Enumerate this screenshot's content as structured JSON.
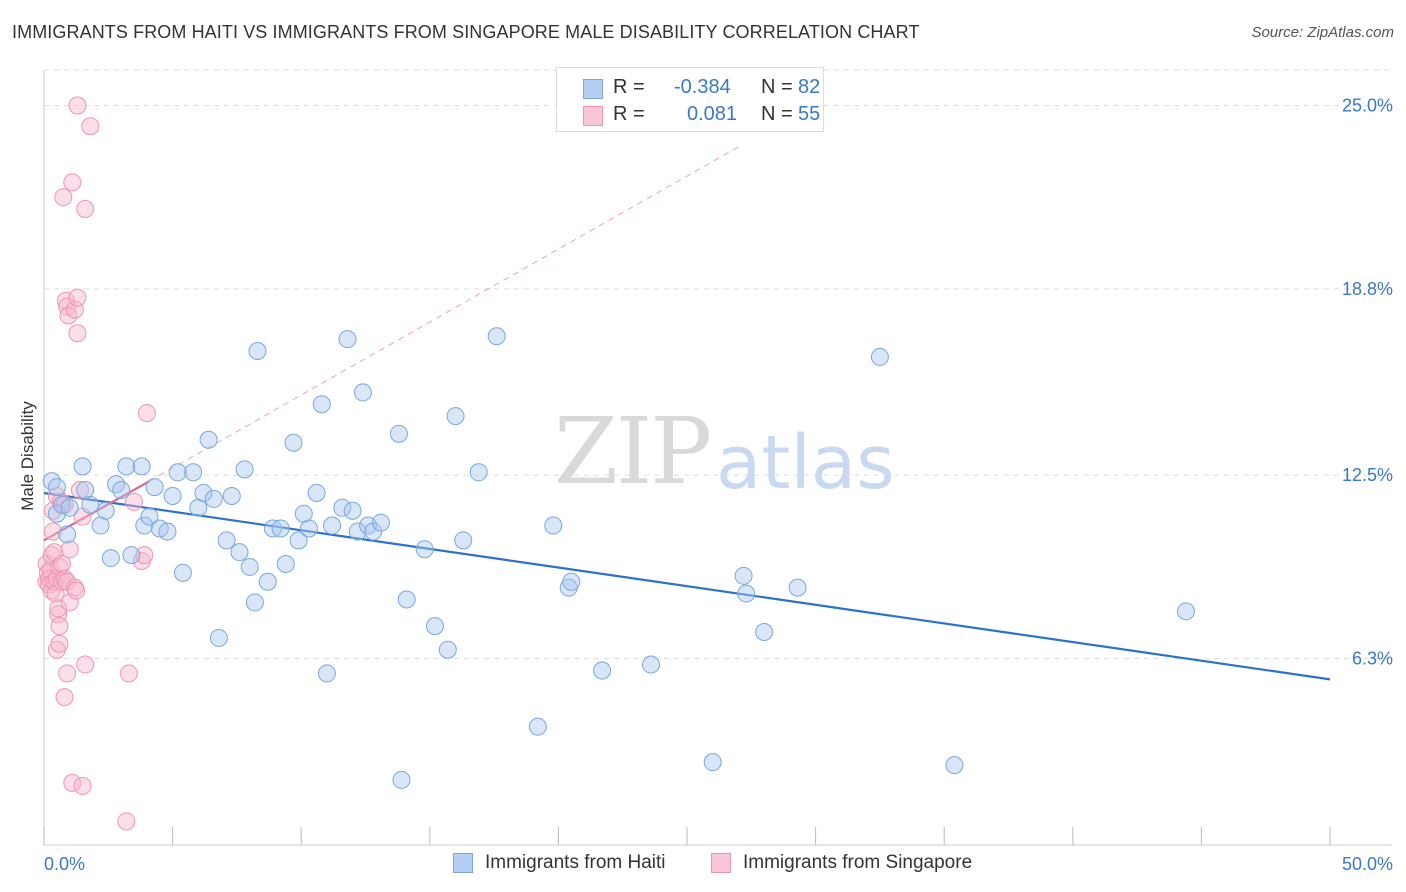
{
  "header": {
    "title": "IMMIGRANTS FROM HAITI VS IMMIGRANTS FROM SINGAPORE MALE DISABILITY CORRELATION CHART",
    "source": "Source: ZipAtlas.com"
  },
  "watermark": {
    "zip": "ZIP",
    "atlas": "atlas"
  },
  "legend": {
    "haiti": {
      "r_label": "R =",
      "r_value": "-0.384",
      "n_label": "N =",
      "n_value": "82"
    },
    "singapore": {
      "r_label": "R =",
      "r_value": "0.081",
      "n_label": "N =",
      "n_value": "55"
    }
  },
  "colors": {
    "haiti_fill": "#a9c8ef",
    "haiti_stroke": "#7aa7de",
    "haiti_line": "#2b72cc",
    "singapore_fill": "#f6b9cc",
    "singapore_stroke": "#ee95b2",
    "singapore_line": "#e0668f",
    "grid": "#dddddd",
    "tick_label": "#3a78c9"
  },
  "chart_data": {
    "type": "scatter",
    "title": "IMMIGRANTS FROM HAITI VS IMMIGRANTS FROM SINGAPORE MALE DISABILITY CORRELATION CHART",
    "xlabel": "",
    "ylabel": "Male Disability",
    "xlim": [
      0,
      50
    ],
    "ylim": [
      0,
      26.2
    ],
    "x_tick_labels": [
      "0.0%",
      "50.0%"
    ],
    "y_ticks": [
      6.3,
      12.5,
      18.8,
      25.0
    ],
    "y_tick_labels": [
      "6.3%",
      "12.5%",
      "18.8%",
      "25.0%"
    ],
    "grid": true,
    "series": [
      {
        "name": "Immigrants from Haiti",
        "r": -0.384,
        "n": 82,
        "trend": {
          "x": [
            0,
            50
          ],
          "y": [
            11.9,
            5.6
          ]
        },
        "points": [
          [
            0.3,
            12.3
          ],
          [
            0.5,
            11.2
          ],
          [
            0.5,
            12.1
          ],
          [
            0.7,
            11.5
          ],
          [
            0.9,
            10.5
          ],
          [
            1.0,
            11.4
          ],
          [
            1.5,
            12.8
          ],
          [
            1.6,
            12.0
          ],
          [
            1.8,
            11.5
          ],
          [
            2.2,
            10.8
          ],
          [
            2.4,
            11.3
          ],
          [
            2.6,
            9.7
          ],
          [
            2.8,
            12.2
          ],
          [
            3.0,
            12.0
          ],
          [
            3.2,
            12.8
          ],
          [
            3.4,
            9.8
          ],
          [
            3.8,
            12.8
          ],
          [
            3.9,
            10.8
          ],
          [
            4.1,
            11.1
          ],
          [
            4.3,
            12.1
          ],
          [
            4.5,
            10.7
          ],
          [
            4.8,
            10.6
          ],
          [
            5.0,
            11.8
          ],
          [
            5.4,
            9.2
          ],
          [
            5.2,
            12.6
          ],
          [
            5.8,
            12.6
          ],
          [
            6.0,
            11.4
          ],
          [
            6.2,
            11.9
          ],
          [
            6.4,
            13.7
          ],
          [
            6.6,
            11.7
          ],
          [
            6.8,
            7.0
          ],
          [
            7.1,
            10.3
          ],
          [
            7.3,
            11.8
          ],
          [
            7.6,
            9.9
          ],
          [
            7.8,
            12.7
          ],
          [
            8.0,
            9.4
          ],
          [
            8.2,
            8.2
          ],
          [
            8.3,
            16.7
          ],
          [
            8.7,
            8.9
          ],
          [
            8.9,
            10.7
          ],
          [
            9.2,
            10.7
          ],
          [
            9.4,
            9.5
          ],
          [
            9.7,
            13.6
          ],
          [
            9.9,
            10.3
          ],
          [
            10.1,
            11.2
          ],
          [
            10.3,
            10.7
          ],
          [
            10.6,
            11.9
          ],
          [
            10.8,
            14.9
          ],
          [
            11.0,
            5.8
          ],
          [
            11.2,
            10.8
          ],
          [
            11.6,
            11.4
          ],
          [
            11.8,
            17.1
          ],
          [
            12.0,
            11.3
          ],
          [
            12.2,
            10.6
          ],
          [
            12.4,
            15.3
          ],
          [
            12.6,
            10.8
          ],
          [
            12.8,
            10.6
          ],
          [
            13.1,
            10.9
          ],
          [
            13.8,
            13.9
          ],
          [
            13.9,
            2.2
          ],
          [
            14.1,
            8.3
          ],
          [
            14.8,
            10.0
          ],
          [
            15.2,
            7.4
          ],
          [
            15.7,
            6.6
          ],
          [
            16.0,
            14.5
          ],
          [
            16.3,
            10.3
          ],
          [
            16.9,
            12.6
          ],
          [
            17.6,
            17.2
          ],
          [
            19.2,
            4.0
          ],
          [
            19.8,
            10.8
          ],
          [
            20.4,
            8.7
          ],
          [
            20.5,
            8.9
          ],
          [
            21.7,
            5.9
          ],
          [
            23.6,
            6.1
          ],
          [
            26.0,
            2.8
          ],
          [
            27.2,
            9.1
          ],
          [
            27.3,
            8.5
          ],
          [
            28.0,
            7.2
          ],
          [
            29.3,
            8.7
          ],
          [
            32.5,
            16.5
          ],
          [
            35.4,
            2.7
          ],
          [
            44.4,
            7.9
          ]
        ]
      },
      {
        "name": "Immigrants from Singapore",
        "r": 0.081,
        "n": 55,
        "trend": {
          "x": [
            0,
            4.1
          ],
          "y": [
            10.3,
            12.3
          ]
        },
        "trend_extended": {
          "x": [
            4.1,
            27
          ],
          "y": [
            12.3,
            23.6
          ]
        },
        "points": [
          [
            0.1,
            9.5
          ],
          [
            0.1,
            8.9
          ],
          [
            0.15,
            9.2
          ],
          [
            0.2,
            9.0
          ],
          [
            0.2,
            8.8
          ],
          [
            0.25,
            9.3
          ],
          [
            0.3,
            8.6
          ],
          [
            0.3,
            9.8
          ],
          [
            0.35,
            11.3
          ],
          [
            0.35,
            10.6
          ],
          [
            0.4,
            9.9
          ],
          [
            0.4,
            8.9
          ],
          [
            0.45,
            8.5
          ],
          [
            0.5,
            11.8
          ],
          [
            0.5,
            9.0
          ],
          [
            0.5,
            6.6
          ],
          [
            0.55,
            7.8
          ],
          [
            0.55,
            8.0
          ],
          [
            0.6,
            9.4
          ],
          [
            0.6,
            6.8
          ],
          [
            0.6,
            7.4
          ],
          [
            0.65,
            11.6
          ],
          [
            0.7,
            8.9
          ],
          [
            0.7,
            9.5
          ],
          [
            0.75,
            21.9
          ],
          [
            0.8,
            9.0
          ],
          [
            0.8,
            11.5
          ],
          [
            0.8,
            5.0
          ],
          [
            0.85,
            18.4
          ],
          [
            0.9,
            18.2
          ],
          [
            0.9,
            8.9
          ],
          [
            0.9,
            5.8
          ],
          [
            0.95,
            17.9
          ],
          [
            1.0,
            10.0
          ],
          [
            1.0,
            8.2
          ],
          [
            1.1,
            22.4
          ],
          [
            1.1,
            2.1
          ],
          [
            1.2,
            8.7
          ],
          [
            1.2,
            18.1
          ],
          [
            1.3,
            25.0
          ],
          [
            1.3,
            18.5
          ],
          [
            1.3,
            17.3
          ],
          [
            1.4,
            12.0
          ],
          [
            1.5,
            11.1
          ],
          [
            1.5,
            2.0
          ],
          [
            1.6,
            6.1
          ],
          [
            1.6,
            21.5
          ],
          [
            1.8,
            24.3
          ],
          [
            3.2,
            0.8
          ],
          [
            3.3,
            5.8
          ],
          [
            3.5,
            11.6
          ],
          [
            3.8,
            9.6
          ],
          [
            3.9,
            9.8
          ],
          [
            4.0,
            14.6
          ],
          [
            1.25,
            8.6
          ]
        ]
      }
    ]
  },
  "bottom_legend": {
    "haiti_label": "Immigrants from Haiti",
    "singapore_label": "Immigrants from Singapore"
  }
}
